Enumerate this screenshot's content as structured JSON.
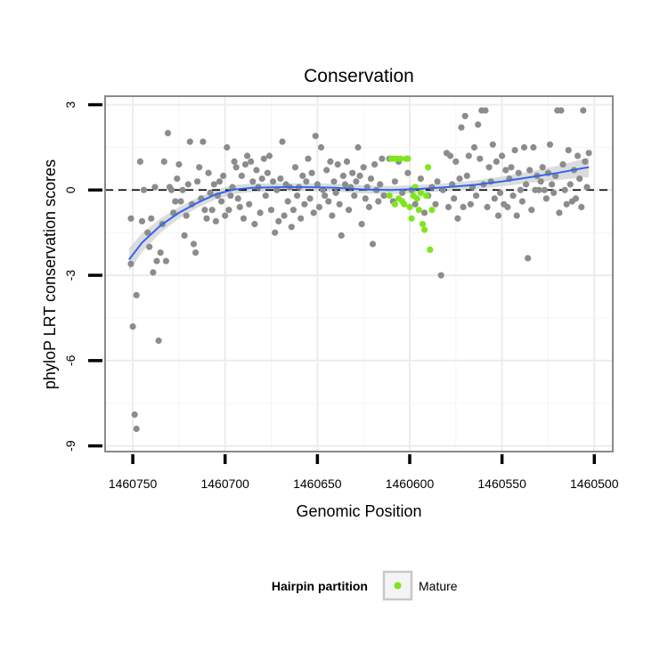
{
  "chart_data": {
    "type": "scatter",
    "title": "Conservation",
    "xlabel": "Genomic Position",
    "ylabel": "phyloP LRT conservation scores",
    "x_reversed": true,
    "xlim": [
      1460765,
      1460490
    ],
    "ylim": [
      -9.2,
      3.3
    ],
    "x_ticks": [
      1460750,
      1460700,
      1460650,
      1460600,
      1460550,
      1460500
    ],
    "y_ticks": [
      3,
      0,
      -3,
      -6,
      -9
    ],
    "grid": true,
    "reference_line": {
      "y": 0,
      "style": "dashed"
    },
    "legend": {
      "title": "Hairpin partition",
      "entries": [
        "Mature"
      ],
      "placement": "bottom"
    },
    "colors": {
      "other": "#8c8c8c",
      "mature": "#7fe51e",
      "smooth": "#3366ee",
      "band": "#d0d0d0"
    },
    "series": [
      {
        "role": "other",
        "points": [
          [
            1460751,
            -1.0
          ],
          [
            1460751,
            -2.6
          ],
          [
            1460750,
            -4.8
          ],
          [
            1460749,
            -7.9
          ],
          [
            1460748,
            -8.4
          ],
          [
            1460748,
            -3.7
          ],
          [
            1460746,
            1.0
          ],
          [
            1460745,
            -1.1
          ],
          [
            1460744,
            0.0
          ],
          [
            1460742,
            -1.5
          ],
          [
            1460741,
            -2.0
          ],
          [
            1460740,
            -1.0
          ],
          [
            1460739,
            -2.9
          ],
          [
            1460738,
            0.1
          ],
          [
            1460737,
            -2.5
          ],
          [
            1460736,
            -5.3
          ],
          [
            1460735,
            -2.2
          ],
          [
            1460734,
            -1.2
          ],
          [
            1460733,
            1.0
          ],
          [
            1460732,
            -2.5
          ],
          [
            1460731,
            2.0
          ],
          [
            1460730,
            0.1
          ],
          [
            1460729,
            0.0
          ],
          [
            1460728,
            -0.8
          ],
          [
            1460727,
            -0.4
          ],
          [
            1460726,
            0.4
          ],
          [
            1460725,
            0.9
          ],
          [
            1460724,
            -0.4
          ],
          [
            1460723,
            0.0
          ],
          [
            1460722,
            -1.6
          ],
          [
            1460721,
            -0.9
          ],
          [
            1460720,
            0.2
          ],
          [
            1460719,
            1.7
          ],
          [
            1460718,
            -0.5
          ],
          [
            1460717,
            -1.9
          ],
          [
            1460716,
            -2.2
          ],
          [
            1460715,
            0.3
          ],
          [
            1460714,
            0.8
          ],
          [
            1460713,
            -0.3
          ],
          [
            1460712,
            1.7
          ],
          [
            1460711,
            -0.7
          ],
          [
            1460710,
            -1.0
          ],
          [
            1460709,
            0.6
          ],
          [
            1460708,
            -0.1
          ],
          [
            1460707,
            -0.7
          ],
          [
            1460706,
            0.2
          ],
          [
            1460705,
            -1.1
          ],
          [
            1460704,
            -0.2
          ],
          [
            1460703,
            0.3
          ],
          [
            1460702,
            -0.4
          ],
          [
            1460701,
            0.5
          ],
          [
            1460700,
            -0.9
          ],
          [
            1460699,
            1.5
          ],
          [
            1460698,
            -0.7
          ],
          [
            1460697,
            -0.2
          ],
          [
            1460696,
            0.1
          ],
          [
            1460695,
            1.0
          ],
          [
            1460694,
            0.8
          ],
          [
            1460693,
            -0.3
          ],
          [
            1460692,
            -0.6
          ],
          [
            1460691,
            0.5
          ],
          [
            1460690,
            -1.0
          ],
          [
            1460689,
            0.9
          ],
          [
            1460688,
            1.2
          ],
          [
            1460687,
            -0.5
          ],
          [
            1460686,
            1.0
          ],
          [
            1460685,
            0.3
          ],
          [
            1460684,
            -1.2
          ],
          [
            1460683,
            0.7
          ],
          [
            1460682,
            0.1
          ],
          [
            1460681,
            -0.8
          ],
          [
            1460680,
            0.4
          ],
          [
            1460679,
            1.1
          ],
          [
            1460678,
            -0.2
          ],
          [
            1460677,
            0.6
          ],
          [
            1460676,
            1.2
          ],
          [
            1460675,
            -0.7
          ],
          [
            1460674,
            0.3
          ],
          [
            1460673,
            -1.5
          ],
          [
            1460672,
            0.0
          ],
          [
            1460671,
            -1.1
          ],
          [
            1460670,
            0.4
          ],
          [
            1460669,
            1.7
          ],
          [
            1460668,
            -0.9
          ],
          [
            1460667,
            0.2
          ],
          [
            1460666,
            -0.4
          ],
          [
            1460665,
            0.1
          ],
          [
            1460664,
            -1.3
          ],
          [
            1460663,
            -0.7
          ],
          [
            1460662,
            0.8
          ],
          [
            1460661,
            -0.2
          ],
          [
            1460660,
            0.1
          ],
          [
            1460659,
            -1.0
          ],
          [
            1460658,
            0.5
          ],
          [
            1460657,
            -0.5
          ],
          [
            1460656,
            0.3
          ],
          [
            1460655,
            1.1
          ],
          [
            1460654,
            -0.3
          ],
          [
            1460653,
            0.6
          ],
          [
            1460652,
            -0.8
          ],
          [
            1460651,
            1.9
          ],
          [
            1460650,
            0.2
          ],
          [
            1460649,
            -0.6
          ],
          [
            1460648,
            1.5
          ],
          [
            1460647,
            0.0
          ],
          [
            1460646,
            -0.2
          ],
          [
            1460645,
            0.7
          ],
          [
            1460644,
            -0.4
          ],
          [
            1460643,
            1.0
          ],
          [
            1460642,
            -0.9
          ],
          [
            1460641,
            0.3
          ],
          [
            1460640,
            -0.1
          ],
          [
            1460639,
            0.9
          ],
          [
            1460638,
            -0.5
          ],
          [
            1460637,
            -1.6
          ],
          [
            1460636,
            0.5
          ],
          [
            1460635,
            0.2
          ],
          [
            1460634,
            1.0
          ],
          [
            1460633,
            -0.7
          ],
          [
            1460632,
            0.1
          ],
          [
            1460631,
            0.6
          ],
          [
            1460630,
            -0.2
          ],
          [
            1460629,
            0.3
          ],
          [
            1460628,
            1.5
          ],
          [
            1460627,
            0.5
          ],
          [
            1460626,
            -1.2
          ],
          [
            1460625,
            0.8
          ],
          [
            1460624,
            -0.3
          ],
          [
            1460623,
            0.1
          ],
          [
            1460622,
            -0.6
          ],
          [
            1460621,
            0.4
          ],
          [
            1460620,
            -1.9
          ],
          [
            1460619,
            0.9
          ],
          [
            1460618,
            0.0
          ],
          [
            1460617,
            -0.4
          ],
          [
            1460616,
            0.2
          ],
          [
            1460615,
            1.1
          ],
          [
            1460614,
            -0.2
          ],
          [
            1460611,
            1.1
          ],
          [
            1460609,
            -0.4
          ],
          [
            1460608,
            0.3
          ],
          [
            1460606,
            1.0
          ],
          [
            1460604,
            -0.1
          ],
          [
            1460601,
            0.6
          ],
          [
            1460599,
            0.0
          ],
          [
            1460597,
            -0.5
          ],
          [
            1460594,
            0.4
          ],
          [
            1460592,
            -0.8
          ],
          [
            1460590,
            -0.2
          ],
          [
            1460588,
            0.1
          ],
          [
            1460586,
            -0.5
          ],
          [
            1460585,
            0.3
          ],
          [
            1460583,
            -3.0
          ],
          [
            1460582,
            0.0
          ],
          [
            1460580,
            1.3
          ],
          [
            1460579,
            -0.6
          ],
          [
            1460578,
            1.2
          ],
          [
            1460577,
            0.2
          ],
          [
            1460576,
            -0.3
          ],
          [
            1460575,
            1.0
          ],
          [
            1460574,
            -1.0
          ],
          [
            1460573,
            0.4
          ],
          [
            1460572,
            2.2
          ],
          [
            1460571,
            -0.6
          ],
          [
            1460570,
            2.6
          ],
          [
            1460569,
            0.5
          ],
          [
            1460568,
            1.2
          ],
          [
            1460567,
            -0.5
          ],
          [
            1460566,
            0.1
          ],
          [
            1460565,
            1.5
          ],
          [
            1460564,
            -0.2
          ],
          [
            1460563,
            2.3
          ],
          [
            1460562,
            1.1
          ],
          [
            1460561,
            2.8
          ],
          [
            1460560,
            0.2
          ],
          [
            1460559,
            2.8
          ],
          [
            1460558,
            -0.6
          ],
          [
            1460557,
            0.8
          ],
          [
            1460556,
            0.3
          ],
          [
            1460555,
            1.6
          ],
          [
            1460554,
            -0.3
          ],
          [
            1460553,
            1.0
          ],
          [
            1460552,
            -0.9
          ],
          [
            1460551,
            -0.1
          ],
          [
            1460550,
            1.2
          ],
          [
            1460549,
            -0.5
          ],
          [
            1460548,
            0.7
          ],
          [
            1460547,
            -0.6
          ],
          [
            1460546,
            0.4
          ],
          [
            1460545,
            0.8
          ],
          [
            1460544,
            -0.2
          ],
          [
            1460543,
            1.4
          ],
          [
            1460542,
            -0.9
          ],
          [
            1460541,
            0.6
          ],
          [
            1460540,
            0.0
          ],
          [
            1460539,
            -0.4
          ],
          [
            1460538,
            1.5
          ],
          [
            1460537,
            0.2
          ],
          [
            1460536,
            -2.4
          ],
          [
            1460535,
            0.7
          ],
          [
            1460534,
            -0.7
          ],
          [
            1460533,
            1.5
          ],
          [
            1460532,
            0.0
          ],
          [
            1460531,
            0.5
          ],
          [
            1460530,
            0.0
          ],
          [
            1460529,
            0.3
          ],
          [
            1460528,
            0.8
          ],
          [
            1460527,
            0.0
          ],
          [
            1460526,
            -0.3
          ],
          [
            1460525,
            0.6
          ],
          [
            1460524,
            1.6
          ],
          [
            1460523,
            0.2
          ],
          [
            1460522,
            -0.1
          ],
          [
            1460521,
            0.5
          ],
          [
            1460520,
            2.8
          ],
          [
            1460519,
            -0.8
          ],
          [
            1460518,
            2.8
          ],
          [
            1460517,
            0.9
          ],
          [
            1460516,
            0.0
          ],
          [
            1460515,
            -0.5
          ],
          [
            1460514,
            1.4
          ],
          [
            1460513,
            0.2
          ],
          [
            1460512,
            -0.4
          ],
          [
            1460511,
            0.7
          ],
          [
            1460510,
            -0.3
          ],
          [
            1460509,
            1.2
          ],
          [
            1460508,
            0.4
          ],
          [
            1460507,
            -0.6
          ],
          [
            1460506,
            2.8
          ],
          [
            1460505,
            1.0
          ],
          [
            1460504,
            0.1
          ],
          [
            1460503,
            1.3
          ]
        ]
      },
      {
        "role": "mature",
        "name": "Mature",
        "points": [
          [
            1460611,
            -0.2
          ],
          [
            1460610,
            1.1
          ],
          [
            1460609,
            1.1
          ],
          [
            1460608,
            -0.5
          ],
          [
            1460607,
            1.1
          ],
          [
            1460606,
            -0.3
          ],
          [
            1460605,
            1.1
          ],
          [
            1460604,
            -0.4
          ],
          [
            1460603,
            -0.5
          ],
          [
            1460602,
            1.1
          ],
          [
            1460601,
            1.1
          ],
          [
            1460600,
            -0.6
          ],
          [
            1460599,
            -1.0
          ],
          [
            1460598,
            -0.2
          ],
          [
            1460597,
            0.1
          ],
          [
            1460596,
            -0.3
          ],
          [
            1460595,
            -0.7
          ],
          [
            1460594,
            -0.1
          ],
          [
            1460593,
            -1.2
          ],
          [
            1460592,
            -1.4
          ],
          [
            1460591,
            -0.2
          ],
          [
            1460590,
            0.8
          ],
          [
            1460589,
            -2.1
          ],
          [
            1460588,
            -0.7
          ]
        ]
      }
    ],
    "smooth": [
      {
        "x": 1460752,
        "y": -2.45,
        "se": 0.4
      },
      {
        "x": 1460745,
        "y": -1.85,
        "se": 0.33
      },
      {
        "x": 1460735,
        "y": -1.25,
        "se": 0.25
      },
      {
        "x": 1460725,
        "y": -0.8,
        "se": 0.2
      },
      {
        "x": 1460715,
        "y": -0.45,
        "se": 0.18
      },
      {
        "x": 1460705,
        "y": -0.15,
        "se": 0.17
      },
      {
        "x": 1460695,
        "y": 0.02,
        "se": 0.16
      },
      {
        "x": 1460685,
        "y": 0.08,
        "se": 0.15
      },
      {
        "x": 1460670,
        "y": 0.1,
        "se": 0.14
      },
      {
        "x": 1460655,
        "y": 0.1,
        "se": 0.14
      },
      {
        "x": 1460640,
        "y": 0.08,
        "se": 0.14
      },
      {
        "x": 1460625,
        "y": 0.02,
        "se": 0.14
      },
      {
        "x": 1460610,
        "y": 0.0,
        "se": 0.14
      },
      {
        "x": 1460595,
        "y": 0.04,
        "se": 0.14
      },
      {
        "x": 1460580,
        "y": 0.1,
        "se": 0.14
      },
      {
        "x": 1460565,
        "y": 0.18,
        "se": 0.15
      },
      {
        "x": 1460550,
        "y": 0.3,
        "se": 0.17
      },
      {
        "x": 1460535,
        "y": 0.45,
        "se": 0.2
      },
      {
        "x": 1460520,
        "y": 0.6,
        "se": 0.25
      },
      {
        "x": 1460507,
        "y": 0.76,
        "se": 0.32
      },
      {
        "x": 1460503,
        "y": 0.8,
        "se": 0.35
      }
    ]
  }
}
